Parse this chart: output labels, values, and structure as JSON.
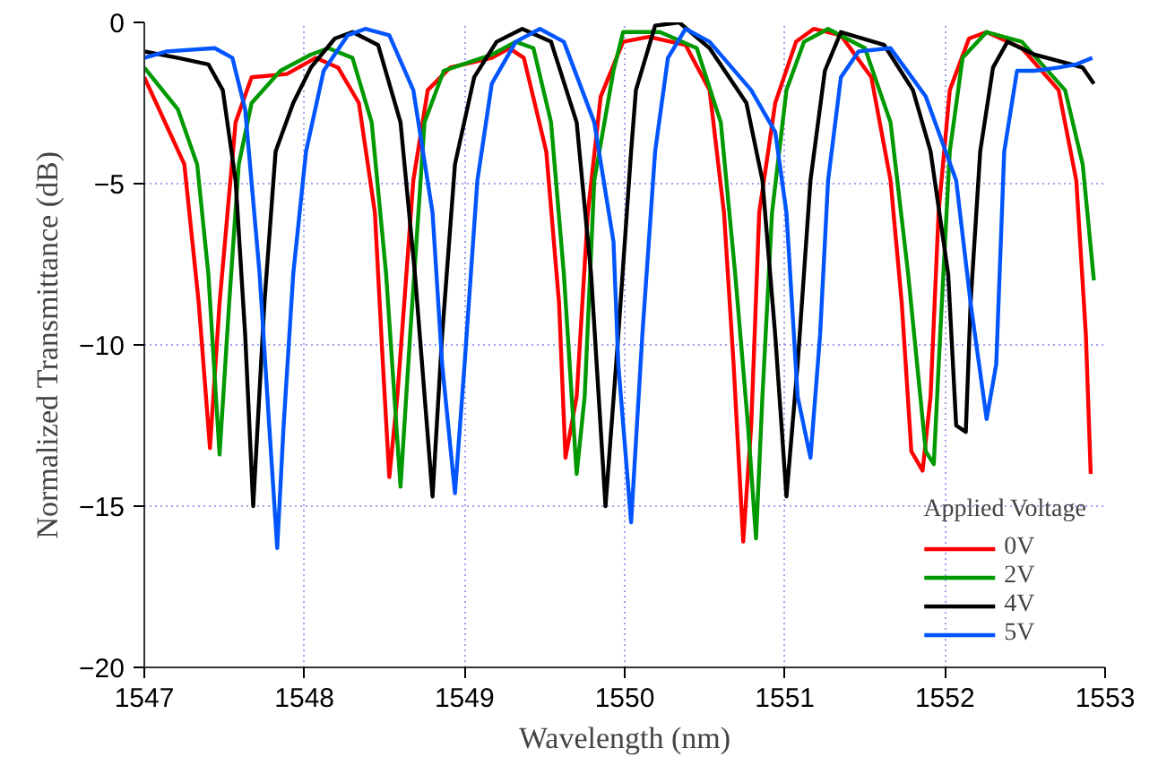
{
  "chart_data": {
    "type": "line",
    "xlabel": "Wavelength (nm)",
    "ylabel": "Normalized Transmittance (dB)",
    "legend_title": "Applied Voltage",
    "legend": "bottom right",
    "grid": true,
    "line_style": "solid",
    "marker": "none",
    "xlim": [
      1547,
      1553
    ],
    "xticks": [
      1547,
      1548,
      1549,
      1550,
      1551,
      1552,
      1553
    ],
    "ylim": [
      -20,
      0
    ],
    "yticks": [
      -20,
      -15,
      -10,
      -5,
      0
    ],
    "series": [
      {
        "name": "0V",
        "color": "#ff0000",
        "x": [
          1547.0,
          1547.25,
          1547.34,
          1547.41,
          1547.47,
          1547.57,
          1547.67,
          1547.89,
          1548.07,
          1548.21,
          1548.34,
          1548.44,
          1548.49,
          1548.53,
          1548.58,
          1548.68,
          1548.77,
          1548.91,
          1549.17,
          1549.28,
          1549.37,
          1549.51,
          1549.59,
          1549.63,
          1549.7,
          1549.77,
          1549.85,
          1549.99,
          1550.15,
          1550.38,
          1550.53,
          1550.62,
          1550.68,
          1550.74,
          1550.79,
          1550.84,
          1550.94,
          1551.07,
          1551.18,
          1551.35,
          1551.54,
          1551.66,
          1551.73,
          1551.79,
          1551.86,
          1551.91,
          1551.96,
          1552.03,
          1552.15,
          1552.26,
          1552.48,
          1552.71,
          1552.82,
          1552.88,
          1552.91
        ],
        "values": [
          -1.7,
          -4.4,
          -8.7,
          -13.2,
          -8.7,
          -3.1,
          -1.7,
          -1.6,
          -1.1,
          -1.4,
          -2.5,
          -5.9,
          -10.6,
          -14.1,
          -11.6,
          -4.9,
          -2.1,
          -1.4,
          -1.1,
          -0.8,
          -1.1,
          -4.0,
          -8.7,
          -13.5,
          -11.6,
          -5.9,
          -2.3,
          -0.6,
          -0.45,
          -0.7,
          -2.1,
          -5.9,
          -10.6,
          -16.1,
          -12.5,
          -5.9,
          -2.5,
          -0.6,
          -0.2,
          -0.4,
          -1.7,
          -4.9,
          -8.7,
          -13.3,
          -13.9,
          -11.6,
          -5.9,
          -2.1,
          -0.5,
          -0.3,
          -0.8,
          -2.1,
          -4.9,
          -9.7,
          -14.0
        ]
      },
      {
        "name": "2V",
        "color": "#009900",
        "x": [
          1547.0,
          1547.21,
          1547.33,
          1547.4,
          1547.47,
          1547.53,
          1547.59,
          1547.67,
          1547.85,
          1548.04,
          1548.15,
          1548.3,
          1548.42,
          1548.51,
          1548.6,
          1548.66,
          1548.75,
          1548.87,
          1549.17,
          1549.32,
          1549.43,
          1549.54,
          1549.62,
          1549.7,
          1549.75,
          1549.81,
          1549.93,
          1549.99,
          1550.22,
          1550.45,
          1550.6,
          1550.69,
          1550.77,
          1550.82,
          1550.86,
          1550.92,
          1551.01,
          1551.12,
          1551.27,
          1551.5,
          1551.66,
          1551.77,
          1551.88,
          1551.93,
          1551.97,
          1552.03,
          1552.11,
          1552.26,
          1552.48,
          1552.75,
          1552.86,
          1552.93
        ],
        "values": [
          -1.4,
          -2.7,
          -4.4,
          -7.8,
          -13.4,
          -8.7,
          -4.4,
          -2.5,
          -1.5,
          -1.0,
          -0.8,
          -1.1,
          -3.1,
          -7.8,
          -14.4,
          -9.7,
          -3.1,
          -1.5,
          -1.0,
          -0.6,
          -0.8,
          -3.1,
          -7.8,
          -14.0,
          -11.6,
          -4.9,
          -1.5,
          -0.3,
          -0.3,
          -0.8,
          -3.1,
          -7.8,
          -12.5,
          -16.0,
          -11.6,
          -5.9,
          -2.1,
          -0.6,
          -0.2,
          -0.8,
          -3.1,
          -7.8,
          -13.3,
          -13.7,
          -9.7,
          -4.0,
          -1.1,
          -0.3,
          -0.6,
          -2.1,
          -4.4,
          -8.0
        ]
      },
      {
        "name": "4V",
        "color": "#000000",
        "x": [
          1547.0,
          1547.21,
          1547.4,
          1547.49,
          1547.57,
          1547.63,
          1547.68,
          1547.75,
          1547.82,
          1547.93,
          1548.04,
          1548.19,
          1548.3,
          1548.46,
          1548.6,
          1548.69,
          1548.8,
          1548.86,
          1548.94,
          1549.06,
          1549.2,
          1549.36,
          1549.54,
          1549.7,
          1549.79,
          1549.88,
          1549.96,
          1550.04,
          1550.07,
          1550.19,
          1550.34,
          1550.53,
          1550.76,
          1550.86,
          1550.94,
          1551.01,
          1551.08,
          1551.16,
          1551.25,
          1551.35,
          1551.62,
          1551.8,
          1551.91,
          1552.02,
          1552.07,
          1552.13,
          1552.16,
          1552.22,
          1552.3,
          1552.39,
          1552.56,
          1552.79,
          1552.86,
          1552.93
        ],
        "values": [
          -0.9,
          -1.1,
          -1.3,
          -2.1,
          -4.9,
          -9.7,
          -15.0,
          -8.7,
          -4.0,
          -2.5,
          -1.4,
          -0.5,
          -0.3,
          -0.7,
          -3.1,
          -7.8,
          -14.7,
          -9.7,
          -4.4,
          -1.7,
          -0.6,
          -0.2,
          -0.6,
          -3.1,
          -7.8,
          -15.0,
          -9.7,
          -4.0,
          -2.1,
          -0.1,
          0.0,
          -0.8,
          -2.5,
          -4.9,
          -9.7,
          -14.7,
          -10.6,
          -4.9,
          -1.5,
          -0.3,
          -0.7,
          -2.1,
          -4.0,
          -7.8,
          -12.5,
          -12.7,
          -8.7,
          -4.0,
          -1.4,
          -0.6,
          -1.0,
          -1.3,
          -1.4,
          -1.9
        ]
      },
      {
        "name": "5V",
        "color": "#0055ff",
        "x": [
          1547.0,
          1547.14,
          1547.44,
          1547.55,
          1547.63,
          1547.72,
          1547.78,
          1547.83,
          1547.87,
          1547.93,
          1548.01,
          1548.12,
          1548.27,
          1548.38,
          1548.53,
          1548.68,
          1548.8,
          1548.86,
          1548.94,
          1549.0,
          1549.08,
          1549.17,
          1549.32,
          1549.47,
          1549.62,
          1549.81,
          1549.93,
          1549.96,
          1550.04,
          1550.11,
          1550.19,
          1550.27,
          1550.38,
          1550.53,
          1550.79,
          1550.94,
          1551.01,
          1551.08,
          1551.16,
          1551.22,
          1551.27,
          1551.35,
          1551.46,
          1551.66,
          1551.88,
          1552.07,
          1552.16,
          1552.26,
          1552.32,
          1552.37,
          1552.45,
          1552.56,
          1552.71,
          1552.82,
          1552.92
        ],
        "values": [
          -1.1,
          -0.9,
          -0.8,
          -1.1,
          -2.7,
          -7.8,
          -12.5,
          -16.3,
          -12.5,
          -7.8,
          -4.0,
          -1.5,
          -0.4,
          -0.2,
          -0.4,
          -2.1,
          -5.9,
          -10.6,
          -14.6,
          -10.6,
          -4.9,
          -1.9,
          -0.6,
          -0.2,
          -0.6,
          -3.1,
          -6.8,
          -10.6,
          -15.5,
          -9.7,
          -4.0,
          -1.1,
          -0.2,
          -0.6,
          -2.1,
          -3.4,
          -5.9,
          -11.6,
          -13.5,
          -9.7,
          -4.9,
          -1.7,
          -0.9,
          -0.8,
          -2.3,
          -4.9,
          -8.7,
          -12.3,
          -10.6,
          -4.0,
          -1.5,
          -1.5,
          -1.4,
          -1.3,
          -1.1
        ]
      }
    ]
  }
}
